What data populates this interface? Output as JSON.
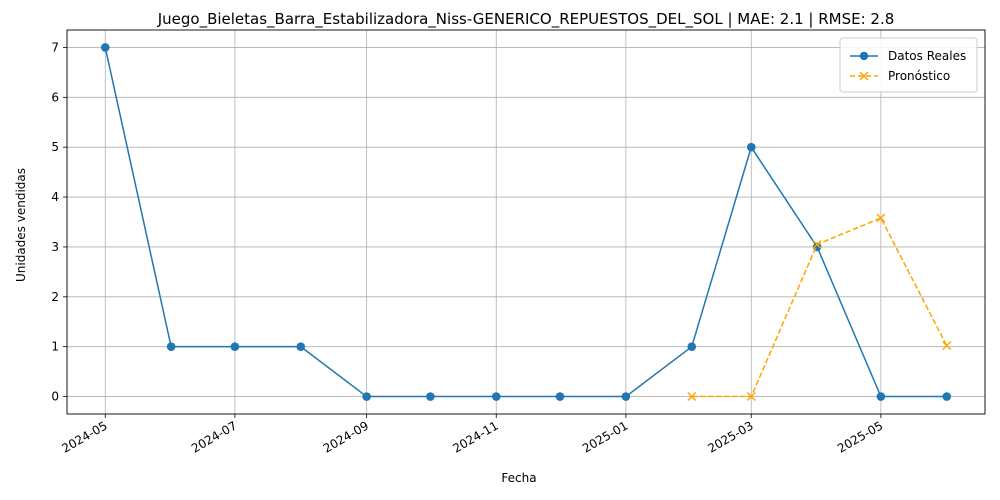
{
  "chart_data": {
    "type": "line",
    "title": "Juego_Bieletas_Barra_Estabilizadora_Niss-GENERICO_REPUESTOS_DEL_SOL | MAE: 2.1 | RMSE: 2.8",
    "xlabel": "Fecha",
    "ylabel": "Unidades vendidas",
    "x_ticks": [
      "2024-05",
      "2024-07",
      "2024-09",
      "2024-11",
      "2025-01",
      "2025-03",
      "2025-05"
    ],
    "y_ticks": [
      0,
      1,
      2,
      3,
      4,
      5,
      6,
      7
    ],
    "ylim": [
      -0.35,
      7.35
    ],
    "xlim": [
      "2024-04-13",
      "2025-06-19"
    ],
    "grid": true,
    "legend_position": "top-right",
    "series": [
      {
        "name": "Datos Reales",
        "color": "#1f77b4",
        "style": "solid",
        "marker": "circle",
        "x": [
          "2024-05-01",
          "2024-06-01",
          "2024-07-01",
          "2024-08-01",
          "2024-09-01",
          "2024-10-01",
          "2024-11-01",
          "2024-12-01",
          "2025-01-01",
          "2025-02-01",
          "2025-03-01",
          "2025-04-01",
          "2025-05-01",
          "2025-06-01"
        ],
        "values": [
          7,
          1,
          1,
          1,
          0,
          0,
          0,
          0,
          0,
          1,
          5,
          3,
          0,
          0
        ]
      },
      {
        "name": "Pronóstico",
        "color": "#ffa500",
        "style": "dashed",
        "marker": "x",
        "x": [
          "2025-02-01",
          "2025-03-01",
          "2025-04-01",
          "2025-05-01",
          "2025-06-01"
        ],
        "values": [
          0,
          0,
          3.05,
          3.58,
          1.02
        ]
      }
    ]
  }
}
